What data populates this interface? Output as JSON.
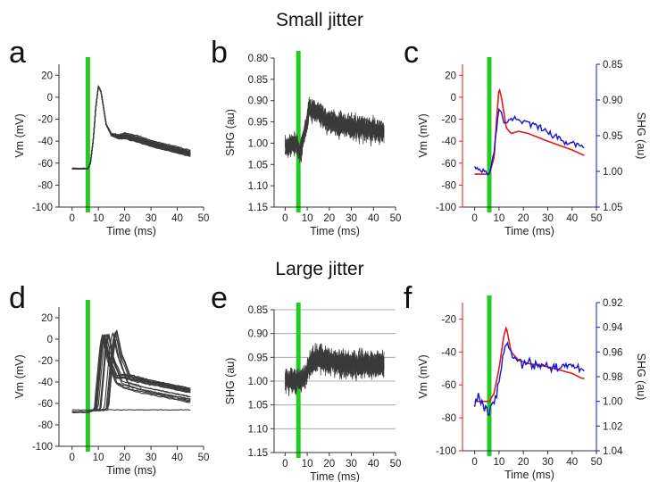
{
  "figure": {
    "titles": [
      "Small jitter",
      "Large jitter"
    ]
  },
  "colors": {
    "traces": "#3a3a3a",
    "stimulus_bar": "#22cc22",
    "vm_red": "#e31a1a",
    "shg_blue": "#1414d2",
    "axes": "#333333"
  },
  "chart_data": [
    {
      "panel": "a",
      "type": "line",
      "xlabel": "Time (ms)",
      "ylabel": "Vm (mV)",
      "xlim": [
        -5,
        50
      ],
      "ylim": [
        -100,
        30
      ],
      "xticks": [
        0,
        10,
        20,
        30,
        40,
        50
      ],
      "yticks": [
        -100,
        -80,
        -60,
        -40,
        -20,
        0,
        20
      ],
      "stimulus_x": 6,
      "series_description": "~20 overlaid action-potential traces, baseline ~-65 mV, peak ~10 mV at ~10 ms, ~-30 mV plateau decaying to ~-50 mV by 45 ms",
      "series": [
        {
          "x": [
            0,
            6,
            7,
            8,
            9,
            10,
            11,
            13,
            15,
            18,
            20,
            25,
            30,
            35,
            40,
            45
          ],
          "values": [
            -65,
            -65,
            -60,
            -40,
            -10,
            10,
            5,
            -25,
            -34,
            -36,
            -35,
            -38,
            -42,
            -45,
            -48,
            -51
          ]
        }
      ]
    },
    {
      "panel": "b",
      "type": "line",
      "xlabel": "Time (ms)",
      "ylabel": "SHG (au)",
      "xlim": [
        -5,
        50
      ],
      "ylim": [
        1.15,
        0.8
      ],
      "y_inverted": true,
      "xticks": [
        0,
        10,
        20,
        30,
        40,
        50
      ],
      "yticks": [
        0.8,
        0.85,
        0.9,
        0.95,
        1.0,
        1.05,
        1.1,
        1.15
      ],
      "stimulus_x": 6,
      "series_description": "~20 overlaid noisy SHG traces, ~1.0 before stimulus, stepping to ~0.94-0.97 after 10 ms",
      "series": [
        {
          "x": [
            0,
            5,
            7,
            9,
            11,
            15,
            20,
            30,
            40,
            45
          ],
          "values": [
            1.01,
            1.0,
            1.02,
            0.97,
            0.92,
            0.93,
            0.95,
            0.96,
            0.97,
            0.97
          ]
        }
      ]
    },
    {
      "panel": "c",
      "type": "line",
      "xlabel": "Time (ms)",
      "ylabel": "Vm (mV)",
      "y2label": "SHG (au)",
      "xlim": [
        -5,
        50
      ],
      "ylim": [
        -100,
        30
      ],
      "y2lim": [
        1.05,
        0.85
      ],
      "y2_inverted": true,
      "xticks": [
        0,
        10,
        20,
        30,
        40,
        50
      ],
      "yticks": [
        -100,
        -80,
        -60,
        -40,
        -20,
        0,
        20
      ],
      "y2ticks": [
        0.85,
        0.9,
        0.95,
        1.0,
        1.05
      ],
      "stimulus_x": 6,
      "series": [
        {
          "name": "Vm (mV)",
          "axis": "left",
          "x": [
            0,
            6,
            8,
            9,
            10,
            11,
            13,
            15,
            18,
            22,
            30,
            40,
            45
          ],
          "values": [
            -70,
            -70,
            -55,
            -20,
            8,
            0,
            -28,
            -33,
            -31,
            -33,
            -40,
            -48,
            -53
          ]
        },
        {
          "name": "SHG (au)",
          "axis": "right",
          "x": [
            0,
            6,
            7,
            8,
            9,
            10,
            11,
            12,
            14,
            17,
            20,
            25,
            30,
            35,
            40,
            45
          ],
          "values": [
            0.995,
            1.005,
            0.99,
            0.97,
            0.94,
            0.91,
            0.92,
            0.935,
            0.93,
            0.925,
            0.93,
            0.935,
            0.945,
            0.955,
            0.96,
            0.965
          ]
        }
      ]
    },
    {
      "panel": "d",
      "type": "line",
      "xlabel": "Time (ms)",
      "ylabel": "Vm (mV)",
      "xlim": [
        -5,
        50
      ],
      "ylim": [
        -100,
        30
      ],
      "xticks": [
        0,
        10,
        20,
        30,
        40,
        50
      ],
      "yticks": [
        -100,
        -80,
        -60,
        -40,
        -20,
        0,
        20
      ],
      "stimulus_x": 6,
      "series_description": "~20 overlaid traces with jittered spike onsets between ~10 and ~16 ms, peaks ~5 mV, settling to ~-40 to -55 mV; one non-spiking trace at ~-65 mV",
      "series": [
        {
          "x": [
            0,
            6,
            10,
            12,
            13,
            15,
            18,
            25,
            35,
            45
          ],
          "values": [
            -68,
            -68,
            -65,
            -10,
            5,
            -20,
            -40,
            -45,
            -50,
            -55
          ]
        }
      ]
    },
    {
      "panel": "e",
      "type": "line",
      "xlabel": "Time (ms)",
      "ylabel": "SHG (au)",
      "xlim": [
        -5,
        50
      ],
      "ylim": [
        1.15,
        0.85
      ],
      "y_inverted": true,
      "xticks": [
        0,
        10,
        20,
        30,
        40,
        50
      ],
      "yticks": [
        0.85,
        0.9,
        0.95,
        1.0,
        1.05,
        1.1,
        1.15
      ],
      "grid": true,
      "stimulus_x": 6,
      "series_description": "~20 overlaid noisy SHG traces, ~1.0 before stimulus, stepping to ~0.95-0.97 after ~12 ms",
      "series": [
        {
          "x": [
            0,
            6,
            9,
            12,
            15,
            20,
            30,
            40,
            45
          ],
          "values": [
            1.0,
            1.0,
            0.99,
            0.96,
            0.95,
            0.96,
            0.965,
            0.965,
            0.97
          ]
        }
      ]
    },
    {
      "panel": "f",
      "type": "line",
      "xlabel": "Time (ms)",
      "ylabel": "Vm (mV)",
      "y2label": "SHG (au)",
      "xlim": [
        -5,
        50
      ],
      "ylim": [
        -100,
        -10
      ],
      "y2lim": [
        1.04,
        0.92
      ],
      "y2_inverted": true,
      "xticks": [
        0,
        10,
        20,
        30,
        40,
        50
      ],
      "yticks": [
        -100,
        -80,
        -60,
        -40,
        -20
      ],
      "y2ticks": [
        0.92,
        0.94,
        0.96,
        0.98,
        1.0,
        1.02,
        1.04
      ],
      "stimulus_x": 6,
      "series": [
        {
          "name": "Vm (mV)",
          "axis": "left",
          "x": [
            0,
            6,
            8,
            10,
            12,
            13,
            15,
            18,
            22,
            30,
            40,
            44
          ],
          "values": [
            -70,
            -70,
            -65,
            -50,
            -30,
            -25,
            -40,
            -45,
            -47,
            -49,
            -53,
            -56
          ]
        },
        {
          "name": "SHG (au)",
          "axis": "right",
          "x": [
            0,
            2,
            4,
            6,
            8,
            10,
            12,
            14,
            16,
            20,
            25,
            30,
            35,
            40,
            44
          ],
          "values": [
            1.0,
            0.995,
            1.005,
            1.01,
            1.0,
            0.985,
            0.96,
            0.955,
            0.965,
            0.97,
            0.97,
            0.972,
            0.972,
            0.97,
            0.975
          ]
        }
      ]
    }
  ]
}
